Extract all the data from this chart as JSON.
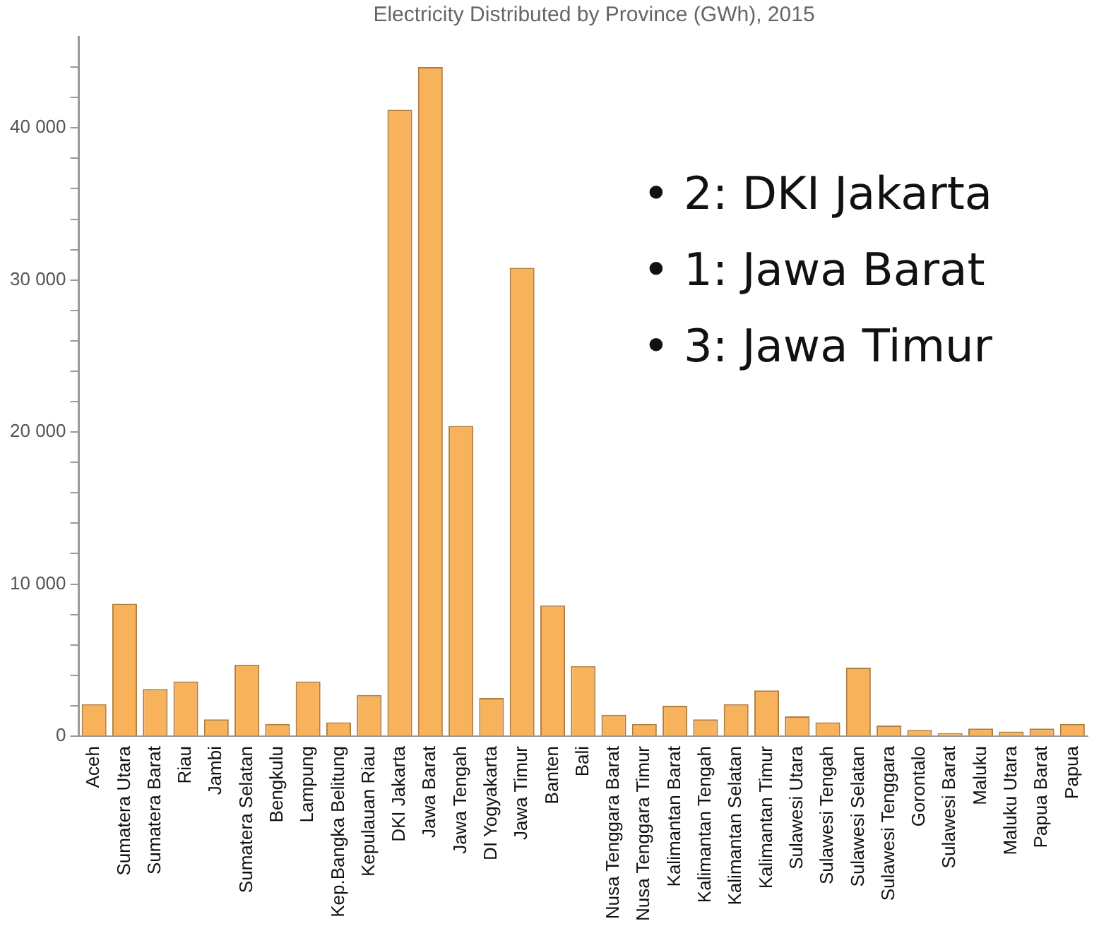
{
  "chart_data": {
    "type": "bar",
    "title": "Electricity Distributed by Province (GWh), 2015",
    "categories": [
      "Aceh",
      "Sumatera Utara",
      "Sumatera Barat",
      "Riau",
      "Jambi",
      "Sumatera Selatan",
      "Bengkulu",
      "Lampung",
      "Kep.Bangka Belitung",
      "Kepulauan Riau",
      "DKI Jakarta",
      "Jawa Barat",
      "Jawa Tengah",
      "DI Yogyakarta",
      "Jawa Timur",
      "Banten",
      "Bali",
      "Nusa Tenggara Barat",
      "Nusa Tenggara Timur",
      "Kalimantan Barat",
      "Kalimantan Tengah",
      "Kalimantan Selatan",
      "Kalimantan Timur",
      "Sulawesi Utara",
      "Sulawesi Tengah",
      "Sulawesi Selatan",
      "Sulawesi Tenggara",
      "Gorontalo",
      "Sulawesi Barat",
      "Maluku",
      "Maluku Utara",
      "Papua Barat",
      "Papua"
    ],
    "values": [
      2100,
      8700,
      3100,
      3600,
      1100,
      4700,
      800,
      3600,
      900,
      2700,
      41200,
      44000,
      20400,
      2500,
      30800,
      8600,
      4600,
      1400,
      800,
      2000,
      1100,
      2100,
      3000,
      1300,
      900,
      4500,
      700,
      400,
      200,
      500,
      300,
      500,
      800
    ],
    "color": "#f9b25c",
    "ylim": [
      0,
      46000
    ],
    "yticks": [
      0,
      {
        "value": 2000,
        "label": null
      },
      {
        "value": 4000,
        "label": null
      },
      {
        "value": 6000,
        "label": null
      },
      {
        "value": 8000,
        "label": null
      },
      {
        "value": 10000,
        "label": "10 000"
      },
      {
        "value": 12000,
        "label": null
      },
      {
        "value": 14000,
        "label": null
      },
      {
        "value": 16000,
        "label": null
      },
      {
        "value": 18000,
        "label": null
      },
      {
        "value": 20000,
        "label": "20 000"
      },
      {
        "value": 22000,
        "label": null
      },
      {
        "value": 24000,
        "label": null
      },
      {
        "value": 26000,
        "label": null
      },
      {
        "value": 28000,
        "label": null
      },
      {
        "value": 30000,
        "label": "30 000"
      },
      {
        "value": 32000,
        "label": null
      },
      {
        "value": 34000,
        "label": null
      },
      {
        "value": 36000,
        "label": null
      },
      {
        "value": 38000,
        "label": null
      },
      {
        "value": 40000,
        "label": "40 000"
      },
      {
        "value": 42000,
        "label": null
      },
      {
        "value": 44000,
        "label": null
      }
    ],
    "annotations": [
      "• 2: DKI Jakarta",
      "• 1: Jawa Barat",
      "• 3: Jawa Timur"
    ],
    "grid": false,
    "legend": false
  }
}
